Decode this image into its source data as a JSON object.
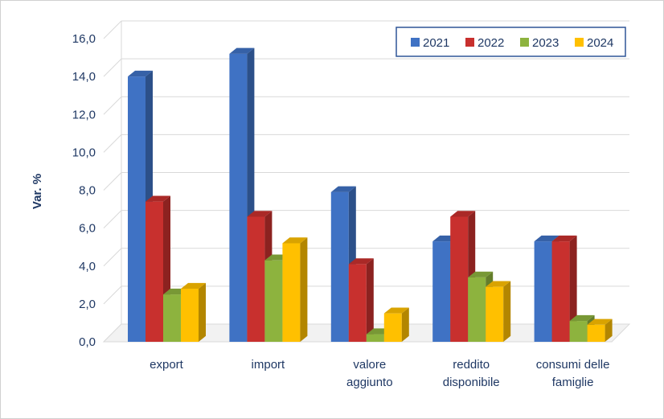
{
  "chart_data": {
    "type": "bar",
    "title": "",
    "xlabel": "",
    "ylabel": "Var. %",
    "ylim": [
      0,
      16
    ],
    "yticks": [
      "0,0",
      "2,0",
      "4,0",
      "6,0",
      "8,0",
      "10,0",
      "12,0",
      "14,0",
      "16,0"
    ],
    "grid": true,
    "legend_position": "top-right",
    "categories": [
      [
        "export"
      ],
      [
        "import"
      ],
      [
        "valore",
        "aggiunto"
      ],
      [
        "reddito",
        "disponibile"
      ],
      [
        "consumi delle",
        "famiglie"
      ]
    ],
    "series": [
      {
        "name": "2021",
        "color": "#3f72c4",
        "values": [
          14.0,
          15.2,
          7.9,
          5.3,
          5.3
        ]
      },
      {
        "name": "2022",
        "color": "#c8302e",
        "values": [
          7.4,
          6.6,
          4.1,
          6.6,
          5.3
        ]
      },
      {
        "name": "2023",
        "color": "#8db33e",
        "values": [
          2.5,
          4.3,
          0.4,
          3.4,
          1.1
        ]
      },
      {
        "name": "2024",
        "color": "#ffc000",
        "values": [
          2.8,
          5.2,
          1.5,
          2.9,
          0.9
        ]
      }
    ]
  }
}
